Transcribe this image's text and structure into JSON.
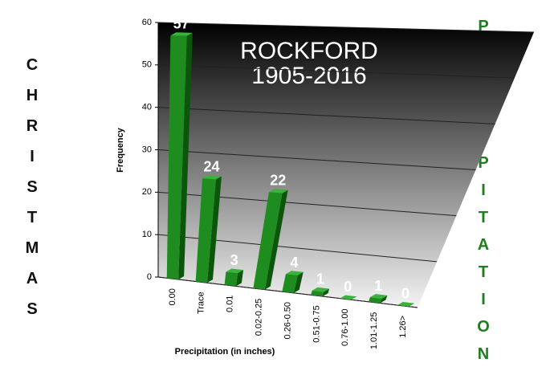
{
  "chart_data": {
    "type": "bar3d",
    "title": "ROCKFORD",
    "subtitle": "1905-2016",
    "left_text": "CHRISTMAS",
    "right_text": "PRECIPITATION",
    "y_label": "Frequency",
    "x_label": "Precipitation (in inches)",
    "categories": [
      "0.00",
      "Trace",
      "0.01",
      "0.02-0.25",
      "0.26-0.50",
      "0.51-0.75",
      "0.76-1.00",
      "1.01-1.25",
      "1.26>"
    ],
    "values": [
      57,
      24,
      3,
      22,
      4,
      1,
      0,
      1,
      0
    ],
    "color": "#1e8c1e",
    "ylim": [
      0,
      60
    ],
    "yticks": [
      0,
      10,
      20,
      30,
      40,
      50,
      60
    ],
    "grid": true
  }
}
